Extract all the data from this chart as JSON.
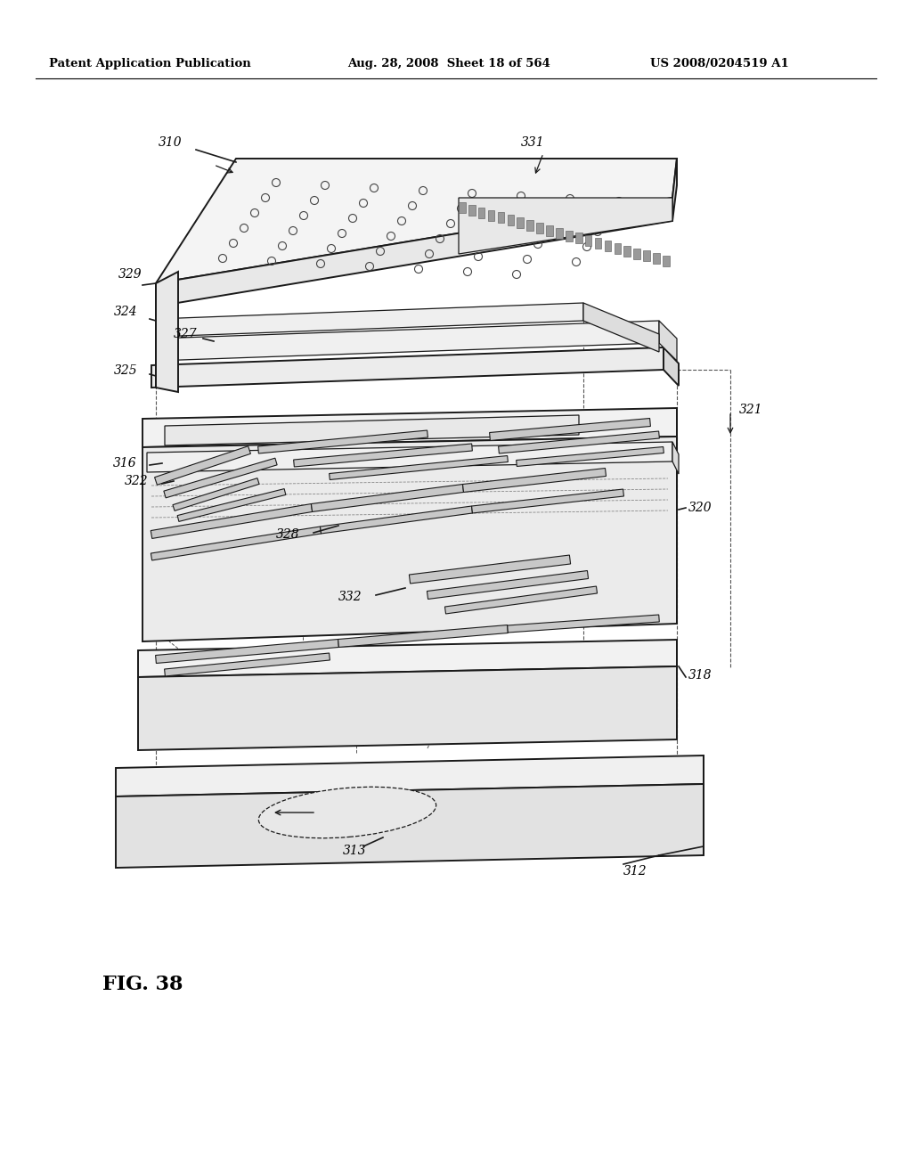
{
  "title_left": "Patent Application Publication",
  "title_mid": "Aug. 28, 2008  Sheet 18 of 564",
  "title_right": "US 2008/0204519 A1",
  "fig_label": "FIG. 38",
  "background": "#ffffff"
}
